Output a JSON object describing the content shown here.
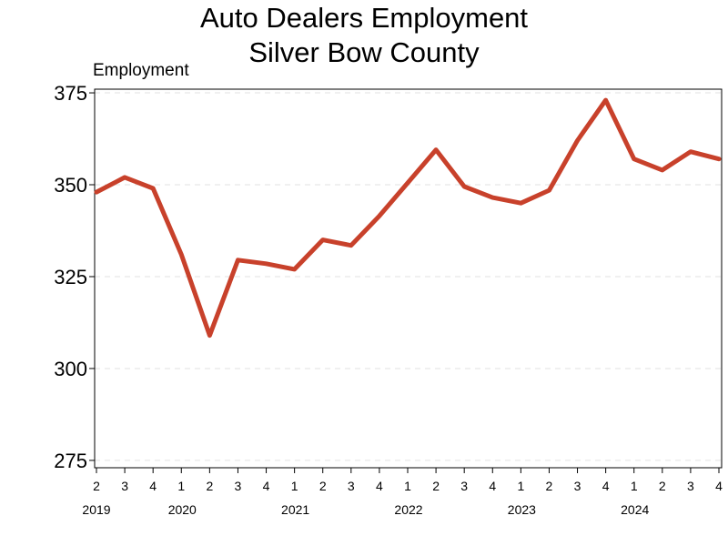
{
  "chart_data": {
    "type": "line",
    "title": "Auto Dealers Employment",
    "subtitle": "Silver Bow County",
    "ylabel": "Employment",
    "xlabel": "",
    "ylim": [
      273,
      376
    ],
    "yticks": [
      275,
      300,
      325,
      350,
      375
    ],
    "grid": "horizontal dashed",
    "legend": "none",
    "x_quarter_labels": [
      "2",
      "3",
      "4",
      "1",
      "2",
      "3",
      "4",
      "1",
      "2",
      "3",
      "4",
      "1",
      "2",
      "3",
      "4",
      "1",
      "2",
      "3",
      "4",
      "1",
      "2",
      "3",
      "4"
    ],
    "x_year_labels": [
      {
        "year": "2019",
        "index": 0
      },
      {
        "year": "2020",
        "index": 3
      },
      {
        "year": "2021",
        "index": 7
      },
      {
        "year": "2022",
        "index": 11
      },
      {
        "year": "2023",
        "index": 15
      },
      {
        "year": "2024",
        "index": 19
      }
    ],
    "series": [
      {
        "color": "#c8412b",
        "values": [
          348,
          352,
          349,
          331,
          309,
          329.5,
          328.5,
          327,
          335,
          333.5,
          341.5,
          350.5,
          359.5,
          349.5,
          346.5,
          345,
          348.5,
          362,
          373,
          357,
          354,
          359,
          357
        ]
      }
    ]
  }
}
